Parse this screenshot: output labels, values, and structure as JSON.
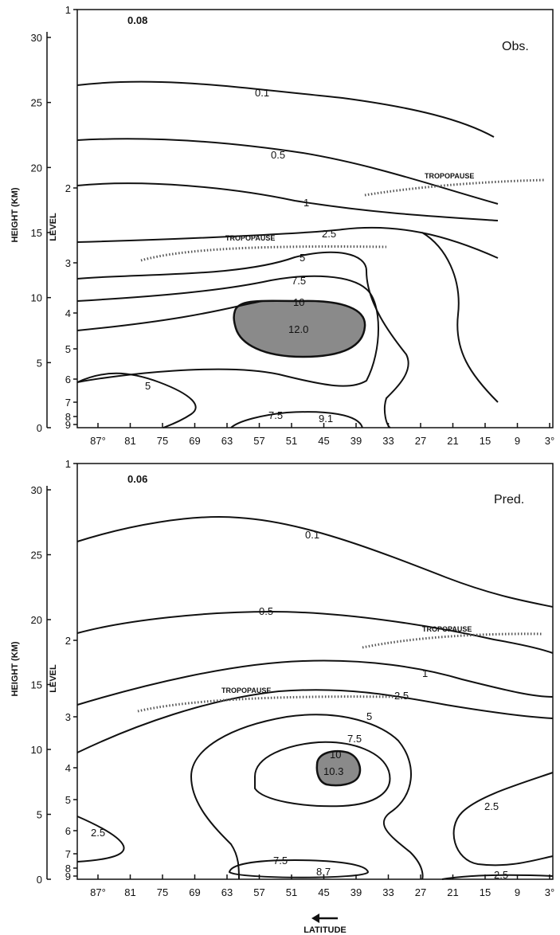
{
  "chart_data": [
    {
      "type": "contour",
      "panel_label": "Obs.",
      "corner_value": "0.08",
      "ylabel_height": "HEIGHT (KM)",
      "ylabel_level": "LEVEL",
      "height_ticks": [
        "0",
        "5",
        "10",
        "15",
        "20",
        "25",
        "30"
      ],
      "level_ticks": [
        "1",
        "2",
        "3",
        "4",
        "5",
        "6",
        "7",
        "8",
        "9"
      ],
      "x_ticks": [
        "87°",
        "81",
        "75",
        "69",
        "63",
        "57",
        "51",
        "45",
        "39",
        "33",
        "27",
        "21",
        "15",
        "9",
        "3°"
      ],
      "tropopause_label": "TROPOPAUSE",
      "contour_levels": [
        "0.1",
        "0.5",
        "1",
        "2.5",
        "5",
        "7.5",
        "10",
        "5",
        "7.5"
      ],
      "maxima": [
        "12.0",
        "9.1"
      ]
    },
    {
      "type": "contour",
      "panel_label": "Pred.",
      "corner_value": "0.06",
      "ylabel_height": "HEIGHT (KM)",
      "ylabel_level": "LEVEL",
      "height_ticks": [
        "0",
        "5",
        "10",
        "15",
        "20",
        "25",
        "30"
      ],
      "level_ticks": [
        "1",
        "2",
        "3",
        "4",
        "5",
        "6",
        "7",
        "8",
        "9"
      ],
      "x_ticks": [
        "87°",
        "81",
        "75",
        "69",
        "63",
        "57",
        "51",
        "45",
        "39",
        "33",
        "27",
        "21",
        "15",
        "9",
        "3°"
      ],
      "tropopause_label": "TROPOPAUSE",
      "contour_levels": [
        "0.1",
        "0.5",
        "1",
        "2.5",
        "5",
        "7.5",
        "10",
        "2.5",
        "2.5",
        "2.5",
        "7.5"
      ],
      "maxima": [
        "10.3",
        "8.7"
      ],
      "xlabel": "LATITUDE"
    }
  ]
}
